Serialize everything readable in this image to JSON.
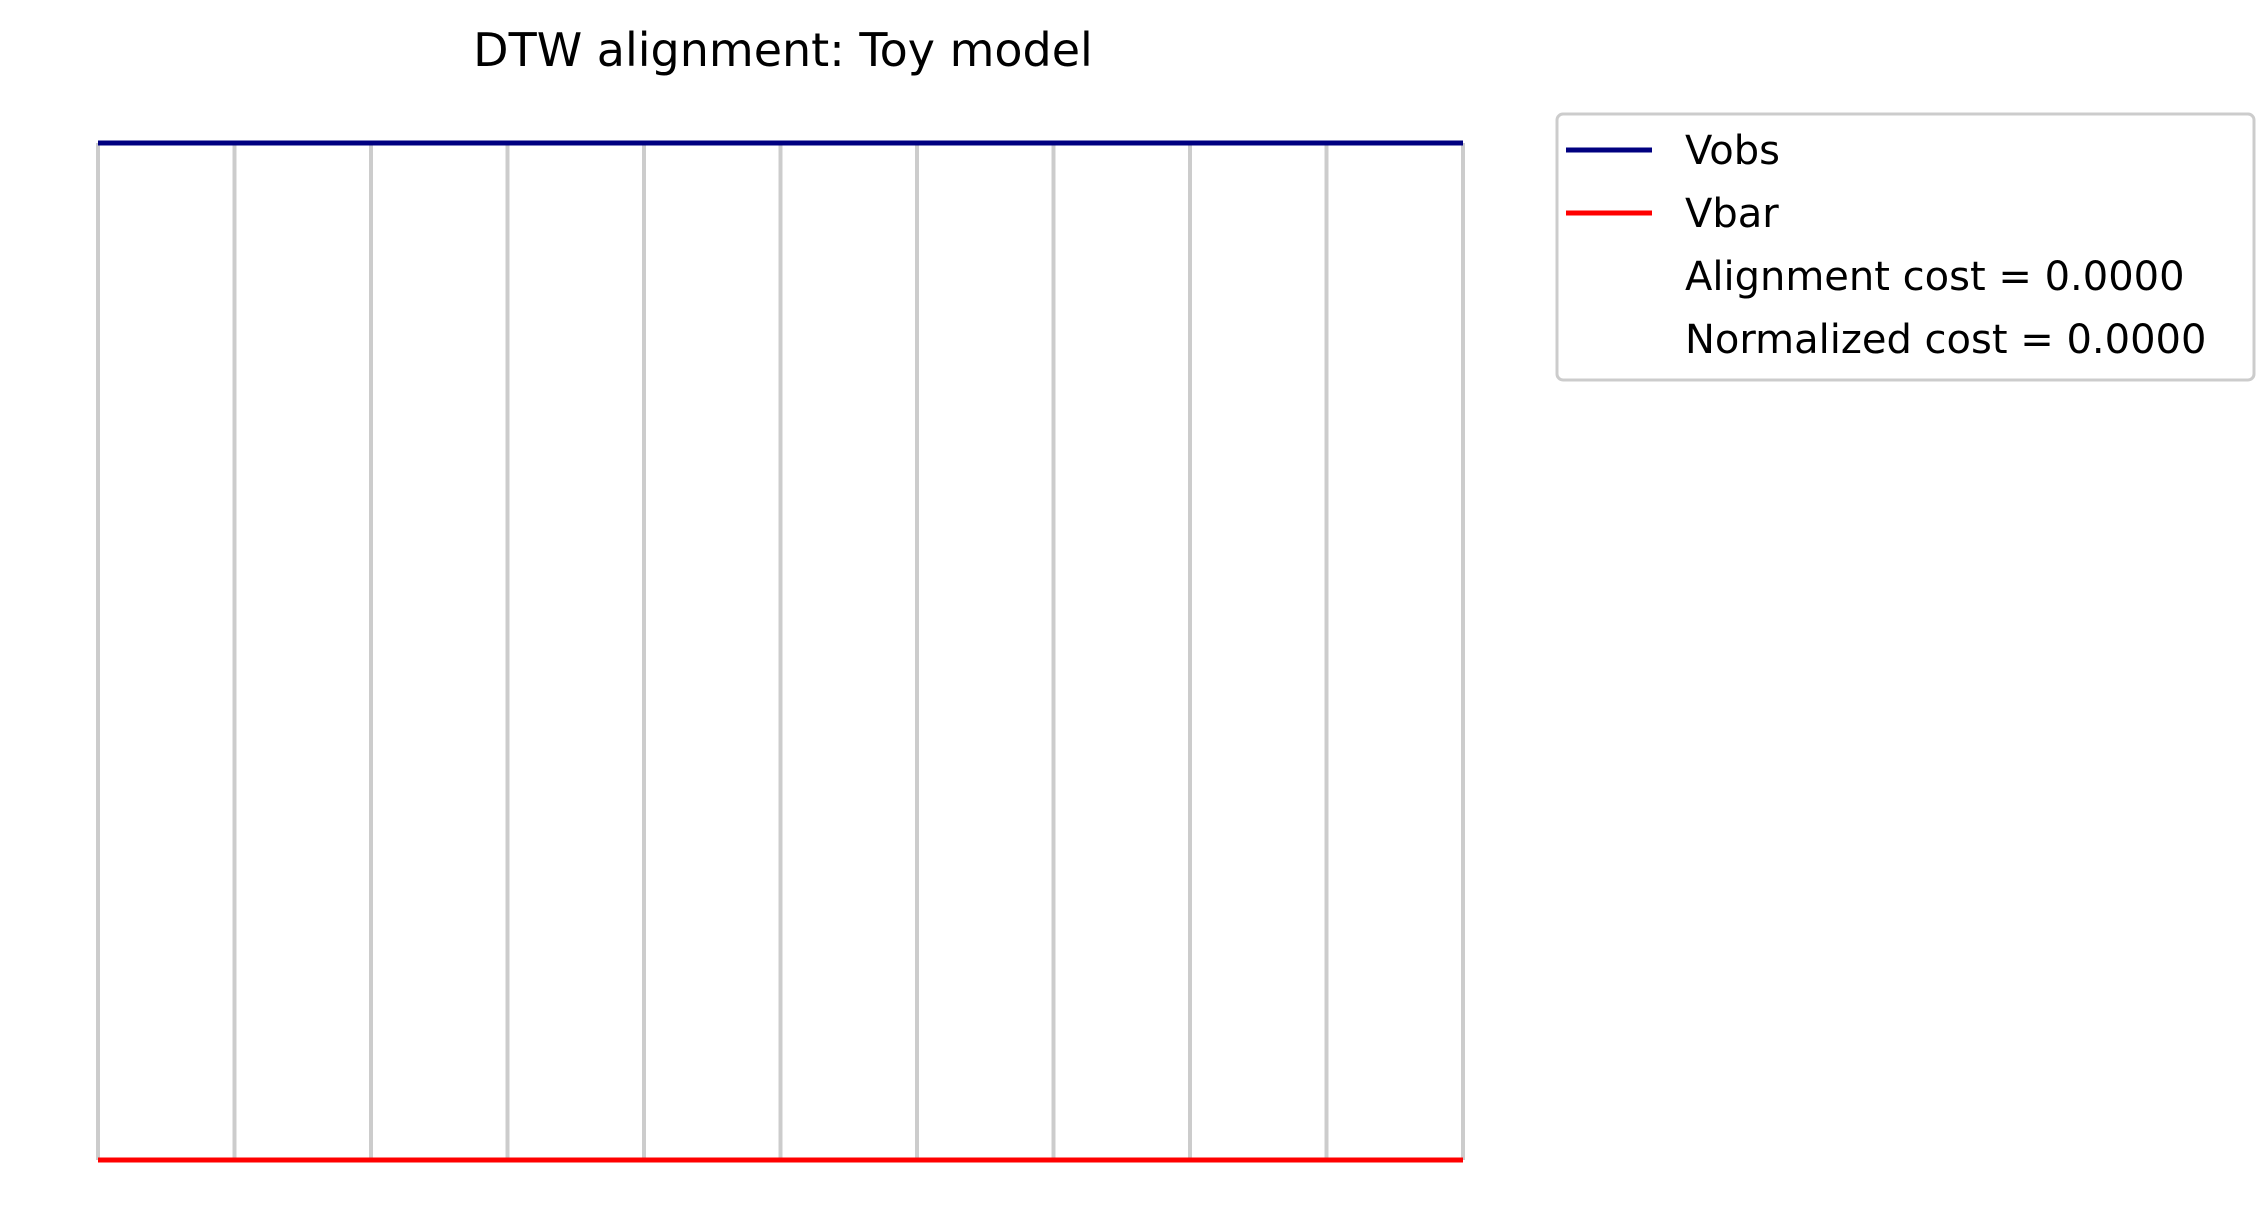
{
  "chart_data": {
    "type": "line",
    "title": "DTW alignment: Toy model",
    "xlabel": "",
    "ylabel": "",
    "axes_visible": false,
    "grid": false,
    "x": [
      0,
      1,
      2,
      3,
      4,
      5,
      6,
      7,
      8,
      9,
      10
    ],
    "xlim": [
      0,
      10
    ],
    "series": [
      {
        "name": "Vobs",
        "color": "#000080",
        "position": "top",
        "values": [
          0,
          0,
          0,
          0,
          0,
          0,
          0,
          0,
          0,
          0,
          0
        ]
      },
      {
        "name": "Vbar",
        "color": "#ff0000",
        "position": "bottom",
        "values": [
          0,
          0,
          0,
          0,
          0,
          0,
          0,
          0,
          0,
          0,
          0
        ]
      }
    ],
    "alignment_links": [
      [
        0,
        0
      ],
      [
        1,
        1
      ],
      [
        2,
        2
      ],
      [
        3,
        3
      ],
      [
        4,
        4
      ],
      [
        5,
        5
      ],
      [
        6,
        6
      ],
      [
        7,
        7
      ],
      [
        8,
        8
      ],
      [
        9,
        9
      ],
      [
        10,
        10
      ]
    ],
    "link_color": "#cccccc",
    "legend": {
      "placement": "outside-right-top",
      "entries": [
        {
          "label": "Vobs",
          "color": "#000080",
          "has_line": true
        },
        {
          "label": "Vbar",
          "color": "#ff0000",
          "has_line": true
        },
        {
          "label": "Alignment cost = 0.0000",
          "has_line": false
        },
        {
          "label": "Normalized cost = 0.0000",
          "has_line": false
        }
      ]
    }
  }
}
